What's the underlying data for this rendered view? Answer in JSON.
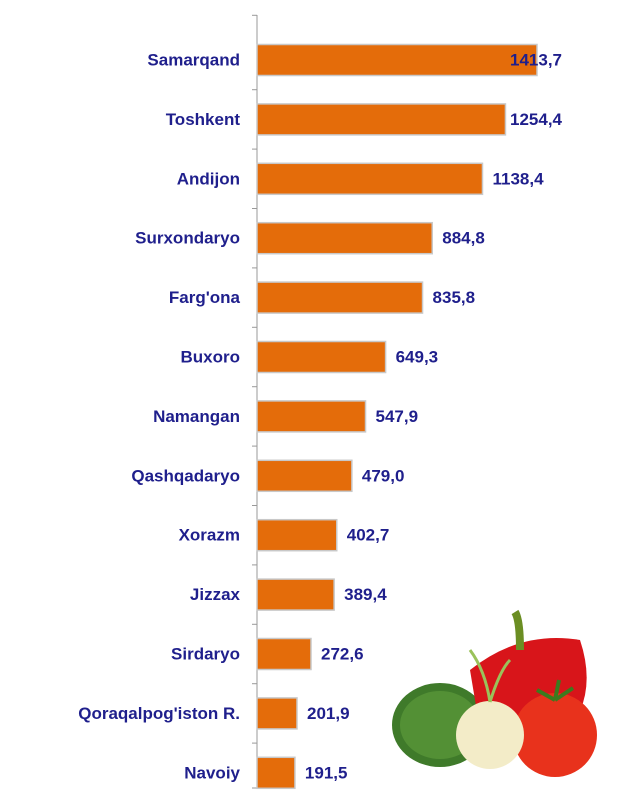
{
  "chart_data": {
    "type": "bar",
    "orientation": "horizontal",
    "categories": [
      "Samarqand",
      "Toshkent",
      "Andijon",
      "Surxondaryo",
      "Farg'ona",
      "Buxoro",
      "Namangan",
      "Qashqadaryo",
      "Xorazm",
      "Jizzax",
      "Sirdaryo",
      "Qoraqalpog'iston R.",
      "Navoiy"
    ],
    "values": [
      1413.7,
      1254.4,
      1138.4,
      884.8,
      835.8,
      649.3,
      547.9,
      479.0,
      402.7,
      389.4,
      272.6,
      201.9,
      191.5
    ],
    "value_labels": [
      "1413,7",
      "1254,4",
      "1138,4",
      "884,8",
      "835,8",
      "649,3",
      "547,9",
      "479,0",
      "402,7",
      "389,4",
      "272,6",
      "201,9",
      "191,5"
    ],
    "color": "#e46c0a"
  }
}
